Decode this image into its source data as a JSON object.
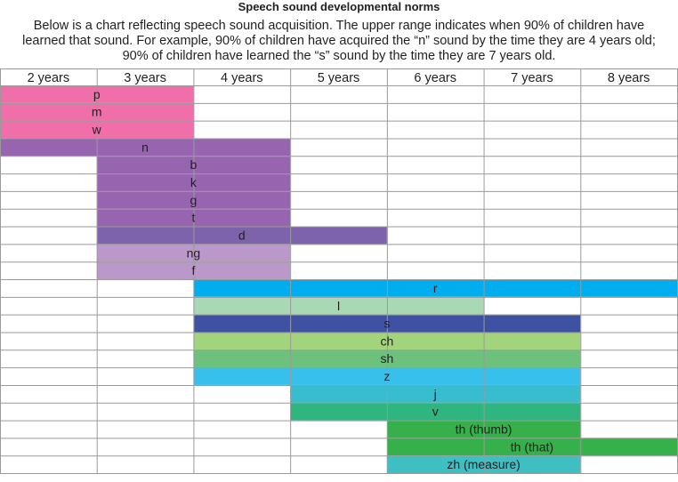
{
  "title": "Speech sound developmental norms",
  "intro": "Below is a chart reflecting speech sound acquisition. The upper range indicates when 90% of children have learned that sound. For example, 90% of children have acquired the “n” sound by the time they are 4 years old; 90% of children have learned the “s” sound by the time they are 7 years old.",
  "chart_data": {
    "type": "bar",
    "orientation": "horizontal-range",
    "columns": [
      "2 years",
      "3 years",
      "4 years",
      "5 years",
      "6 years",
      "7 years",
      "8 years"
    ],
    "sounds": [
      {
        "label": "p",
        "start_age": 2,
        "end_age": 3,
        "color": "#f06eaa"
      },
      {
        "label": "m",
        "start_age": 2,
        "end_age": 3,
        "color": "#f06eaa"
      },
      {
        "label": "w",
        "start_age": 2,
        "end_age": 3,
        "color": "#f06eaa"
      },
      {
        "label": "n",
        "start_age": 2,
        "end_age": 4,
        "color": "#9765b0"
      },
      {
        "label": "b",
        "start_age": 3,
        "end_age": 4,
        "color": "#9765b0"
      },
      {
        "label": "k",
        "start_age": 3,
        "end_age": 4,
        "color": "#9765b0"
      },
      {
        "label": "g",
        "start_age": 3,
        "end_age": 4,
        "color": "#9765b0"
      },
      {
        "label": "t",
        "start_age": 3,
        "end_age": 4,
        "color": "#9765b0"
      },
      {
        "label": "d",
        "start_age": 3,
        "end_age": 5,
        "color": "#7d63ac"
      },
      {
        "label": "ng",
        "start_age": 3,
        "end_age": 4,
        "color": "#bb98ca"
      },
      {
        "label": "f",
        "start_age": 3,
        "end_age": 4,
        "color": "#bb98ca"
      },
      {
        "label": "r",
        "start_age": 4,
        "end_age": 8,
        "color": "#00aeef"
      },
      {
        "label": "l",
        "start_age": 4,
        "end_age": 6,
        "color": "#a8d8b4"
      },
      {
        "label": "s",
        "start_age": 4,
        "end_age": 7,
        "color": "#3f51a3"
      },
      {
        "label": "ch",
        "start_age": 4,
        "end_age": 7,
        "color": "#a2d47b"
      },
      {
        "label": "sh",
        "start_age": 4,
        "end_age": 7,
        "color": "#6cc17c"
      },
      {
        "label": "z",
        "start_age": 4,
        "end_age": 7,
        "color": "#38c0ed"
      },
      {
        "label": "j",
        "start_age": 5,
        "end_age": 7,
        "color": "#38bdcf"
      },
      {
        "label": "v",
        "start_age": 5,
        "end_age": 7,
        "color": "#2fb57f"
      },
      {
        "label": "th (thumb)",
        "start_age": 6,
        "end_age": 7,
        "color": "#35b04a"
      },
      {
        "label": "th (that)",
        "start_age": 6,
        "end_age": 8,
        "color": "#35b04a"
      },
      {
        "label": "zh (measure)",
        "start_age": 6,
        "end_age": 7,
        "color": "#3fbfc2"
      }
    ],
    "grid": true
  }
}
